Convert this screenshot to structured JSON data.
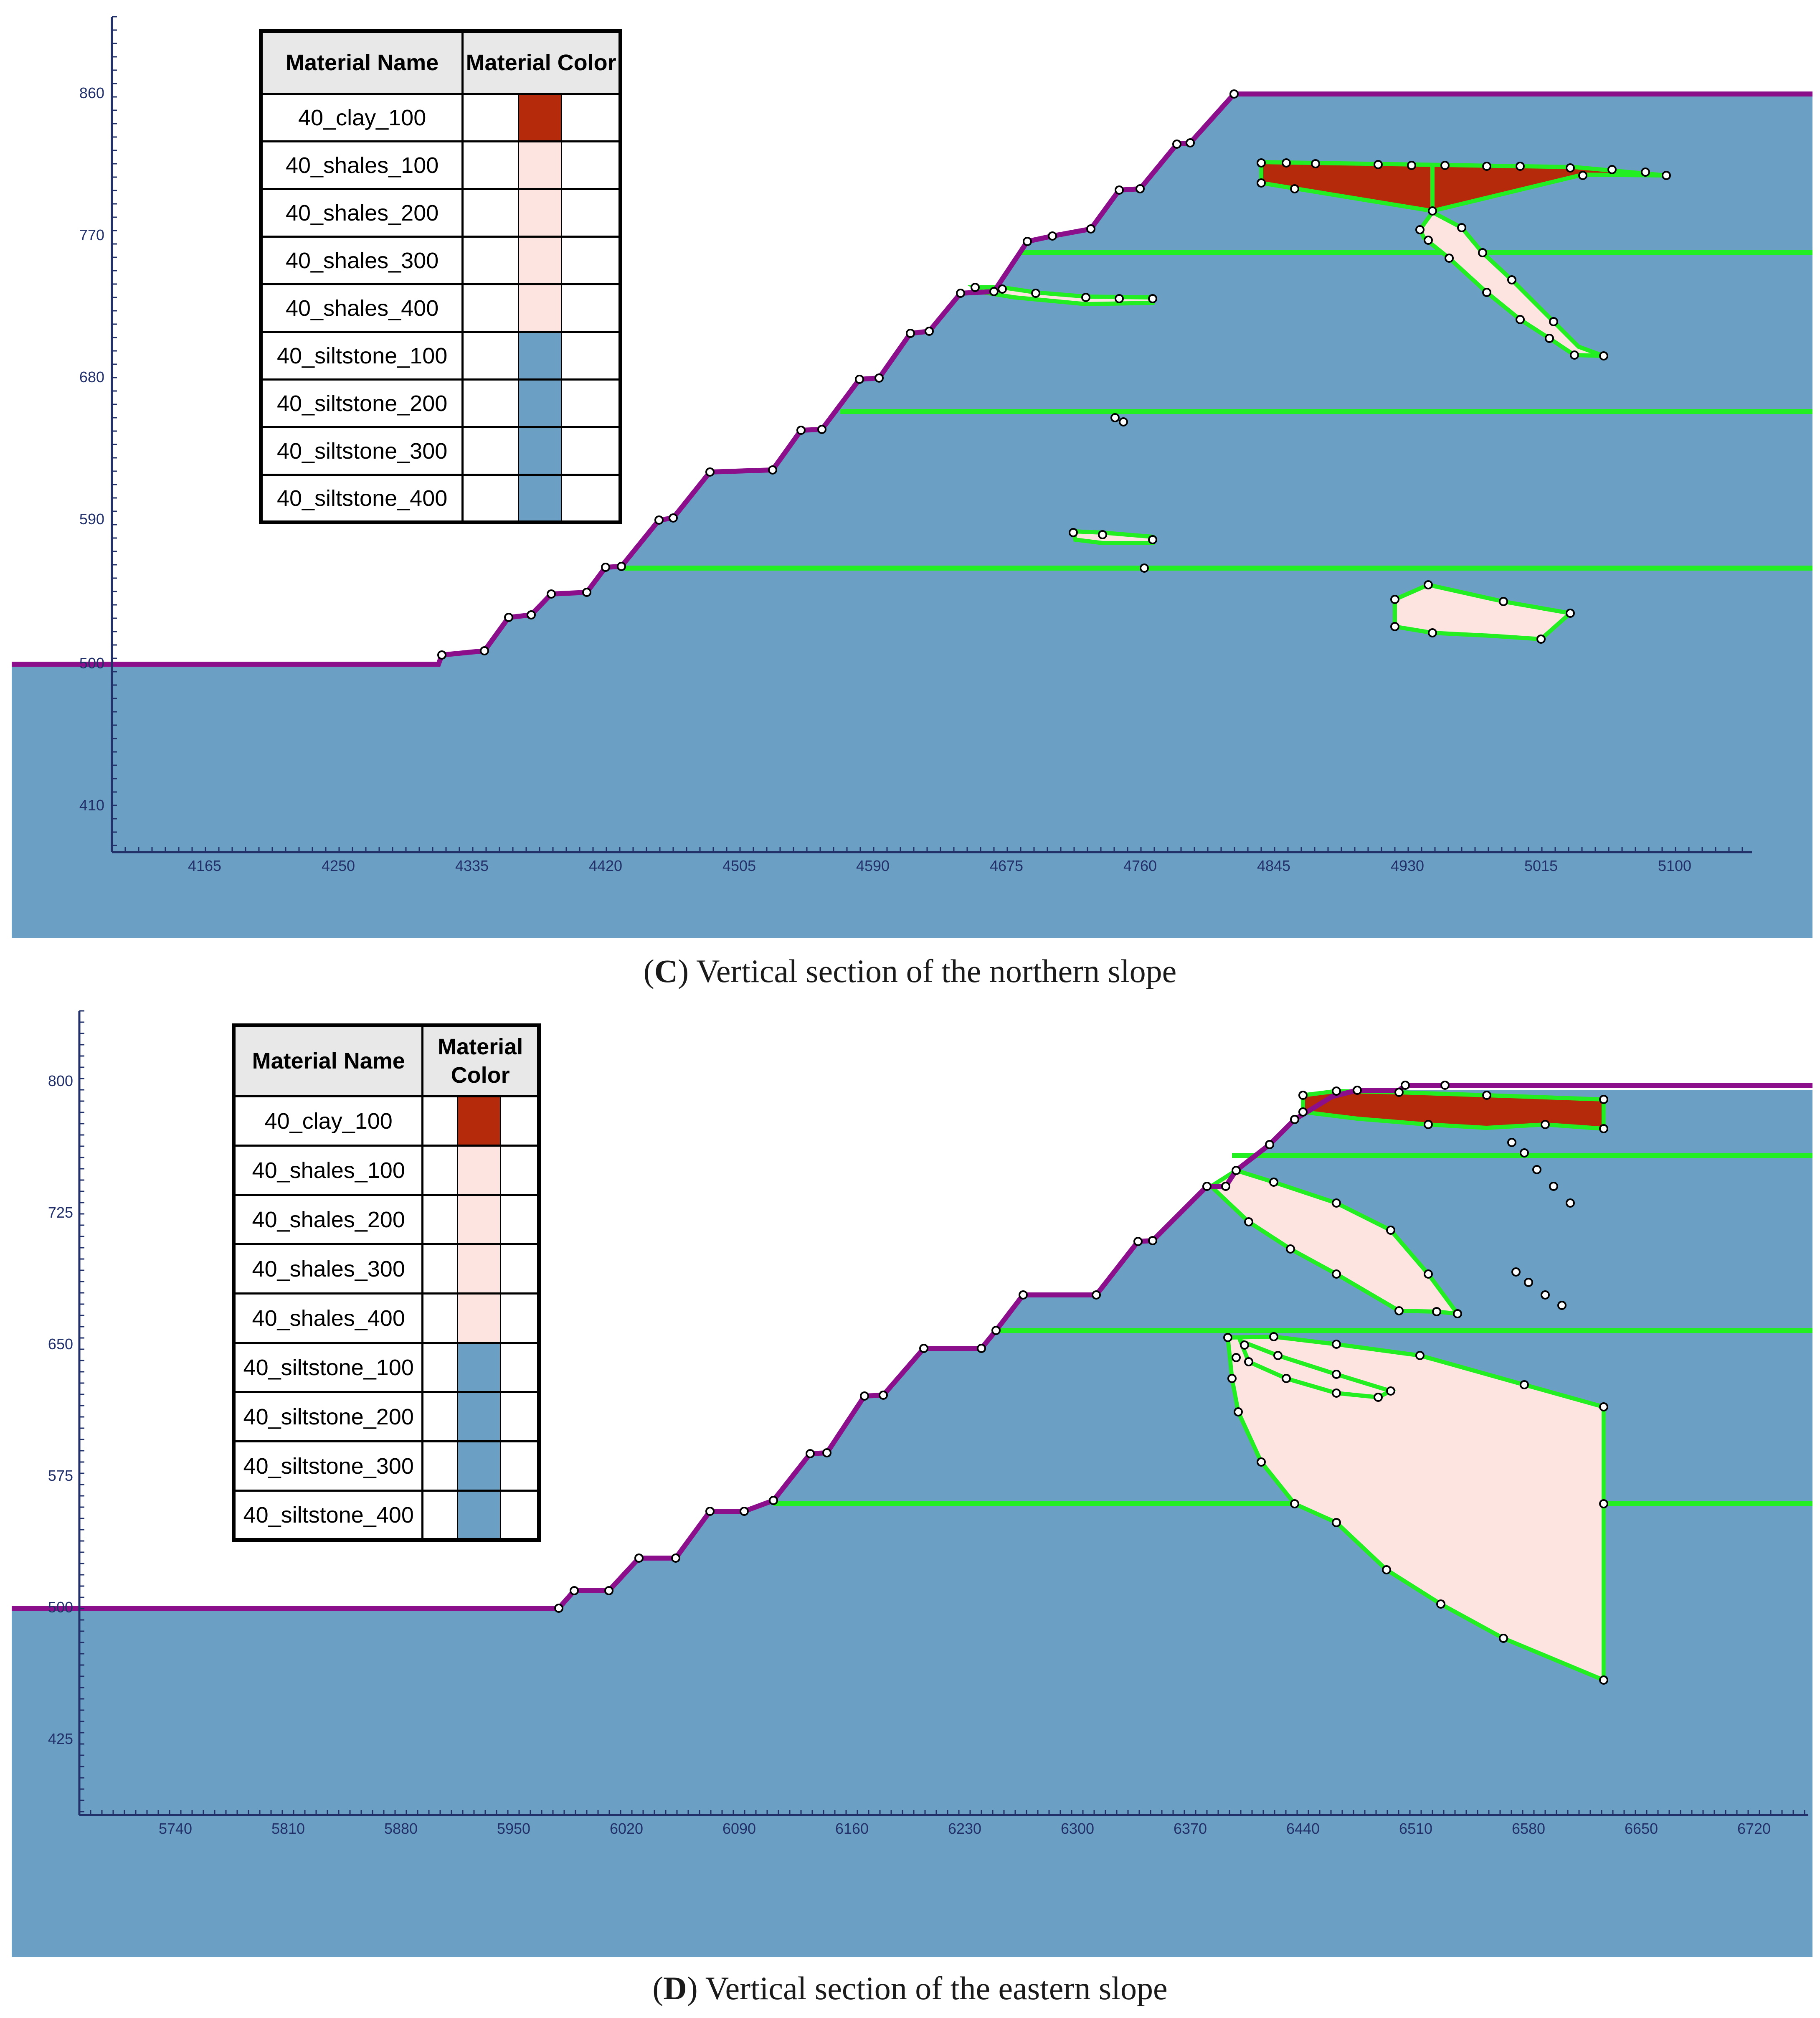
{
  "panels": [
    {
      "id": "C",
      "caption_letter": "C",
      "caption_text": "Vertical section of the northern slope",
      "x_ticks": [
        "4165",
        "4250",
        "4335",
        "4420",
        "4505",
        "4590",
        "4675",
        "4760",
        "4845",
        "4930",
        "5015",
        "5100"
      ],
      "y_ticks": [
        "860",
        "770",
        "680",
        "590",
        "500",
        "410"
      ],
      "legend": {
        "header_name": "Material Name",
        "header_color": "Material Color",
        "rows": [
          {
            "name": "40_clay_100",
            "color": "#b52a0a"
          },
          {
            "name": "40_shales_100",
            "color": "#fde4e1"
          },
          {
            "name": "40_shales_200",
            "color": "#fde4e1"
          },
          {
            "name": "40_shales_300",
            "color": "#fde4e1"
          },
          {
            "name": "40_shales_400",
            "color": "#fde4e1"
          },
          {
            "name": "40_siltstone_100",
            "color": "#6b9fc4"
          },
          {
            "name": "40_siltstone_200",
            "color": "#6b9fc4"
          },
          {
            "name": "40_siltstone_300",
            "color": "#6b9fc4"
          },
          {
            "name": "40_siltstone_400",
            "color": "#6b9fc4"
          }
        ]
      }
    },
    {
      "id": "D",
      "caption_letter": "D",
      "caption_text": "Vertical section of the eastern slope",
      "x_ticks": [
        "5740",
        "5810",
        "5880",
        "5950",
        "6020",
        "6090",
        "6160",
        "6230",
        "6300",
        "6370",
        "6440",
        "6510",
        "6580",
        "6650",
        "6720"
      ],
      "y_ticks": [
        "800",
        "725",
        "650",
        "575",
        "500",
        "425"
      ],
      "legend": {
        "header_name": "Material Name",
        "header_color": "Material Color",
        "rows": [
          {
            "name": "40_clay_100",
            "color": "#b52a0a"
          },
          {
            "name": "40_shales_100",
            "color": "#fde4e1"
          },
          {
            "name": "40_shales_200",
            "color": "#fde4e1"
          },
          {
            "name": "40_shales_300",
            "color": "#fde4e1"
          },
          {
            "name": "40_shales_400",
            "color": "#fde4e1"
          },
          {
            "name": "40_siltstone_100",
            "color": "#6b9fc4"
          },
          {
            "name": "40_siltstone_200",
            "color": "#6b9fc4"
          },
          {
            "name": "40_siltstone_300",
            "color": "#6b9fc4"
          },
          {
            "name": "40_siltstone_400",
            "color": "#6b9fc4"
          }
        ]
      }
    }
  ],
  "colors": {
    "siltstone": "#6b9fc4",
    "shales": "#fde4e1",
    "clay": "#b52a0a",
    "boundary": "#22ee22",
    "surface": "#8b0f8b",
    "axis": "#22306a"
  }
}
